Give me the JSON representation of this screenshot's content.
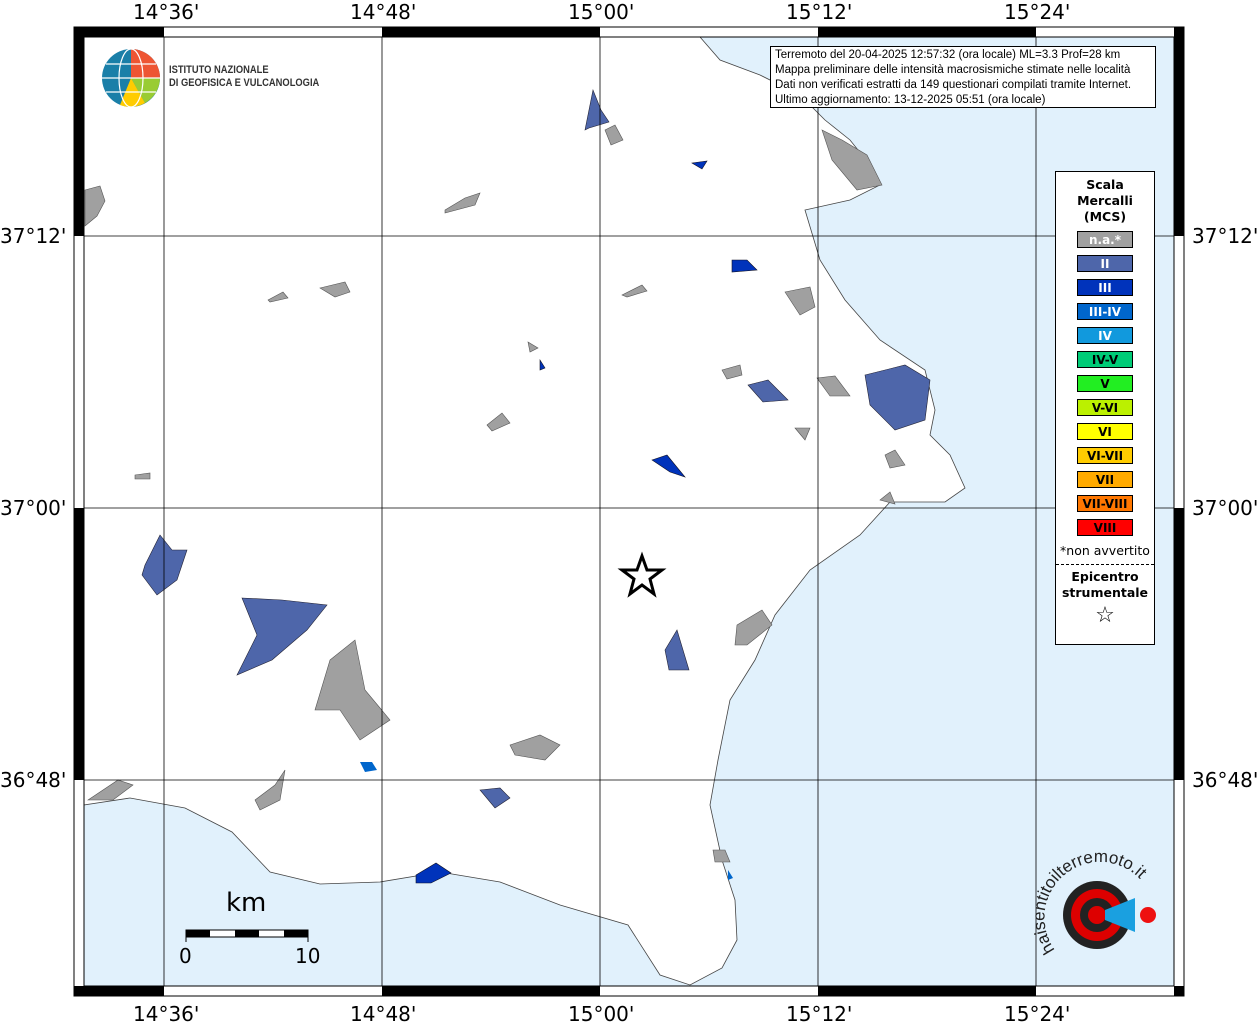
{
  "map": {
    "colors": {
      "sea": "#e1f1fc",
      "land": "#ffffff",
      "grid": "#000000",
      "town_na": "#a0a0a0",
      "town_II": "#4e66aa"
    },
    "top_ticks": [
      "14°36'",
      "14°48'",
      "15°00'",
      "15°12'",
      "15°24'"
    ],
    "bottom_ticks": [
      "14°36'",
      "14°48'",
      "15°00'",
      "15°12'",
      "15°24'"
    ],
    "left_ticks": [
      "37°12'",
      "37°00'",
      "36°48'"
    ],
    "right_ticks": [
      "37°12'",
      "37°00'",
      "36°48'"
    ]
  },
  "info": {
    "lines": [
      "Terremoto del 20-04-2025 12:57:32 (ora locale) ML=3.3 Prof=28 km",
      "Mappa preliminare delle intensità macrosismiche stimate nelle località",
      "Dati non verificati estratti da 149 questionari compilati tramite Internet.",
      "Ultimo aggiornamento: 13-12-2025 05:51 (ora locale)"
    ]
  },
  "legend": {
    "title": "Scala\nMercalli\n(MCS)",
    "items": [
      {
        "label": "n.a.*",
        "color": "#a0a0a0",
        "text_color": "#ffffff"
      },
      {
        "label": "II",
        "color": "#4e66aa",
        "text_color": "#ffffff"
      },
      {
        "label": "III",
        "color": "#0033bb",
        "text_color": "#ffffff"
      },
      {
        "label": "III-IV",
        "color": "#0066cc",
        "text_color": "#ffffff"
      },
      {
        "label": "IV",
        "color": "#1199dd",
        "text_color": "#ffffff"
      },
      {
        "label": "IV-V",
        "color": "#00cc77",
        "text_color": "#000000"
      },
      {
        "label": "V",
        "color": "#22ee22",
        "text_color": "#000000"
      },
      {
        "label": "V-VI",
        "color": "#bbf000",
        "text_color": "#000000"
      },
      {
        "label": "VI",
        "color": "#ffff00",
        "text_color": "#000000"
      },
      {
        "label": "VI-VII",
        "color": "#ffcc00",
        "text_color": "#000000"
      },
      {
        "label": "VII",
        "color": "#ffaa00",
        "text_color": "#000000"
      },
      {
        "label": "VII-VIII",
        "color": "#ff7700",
        "text_color": "#000000"
      },
      {
        "label": "VIII",
        "color": "#ff0000",
        "text_color": "#000000"
      }
    ],
    "note": "*non avvertito",
    "epicenter_label": "Epicentro\nstrumentale",
    "epicenter_icon": "star-outline-icon"
  },
  "scale_bar": {
    "unit": "km",
    "min": "0",
    "max": "10"
  },
  "logos": {
    "ingv": "ISTITUTO NAZIONALE\nDI GEOFISICA E VULCANOLOGIA",
    "haisentito": "www.haisentitoilterremoto.it"
  }
}
